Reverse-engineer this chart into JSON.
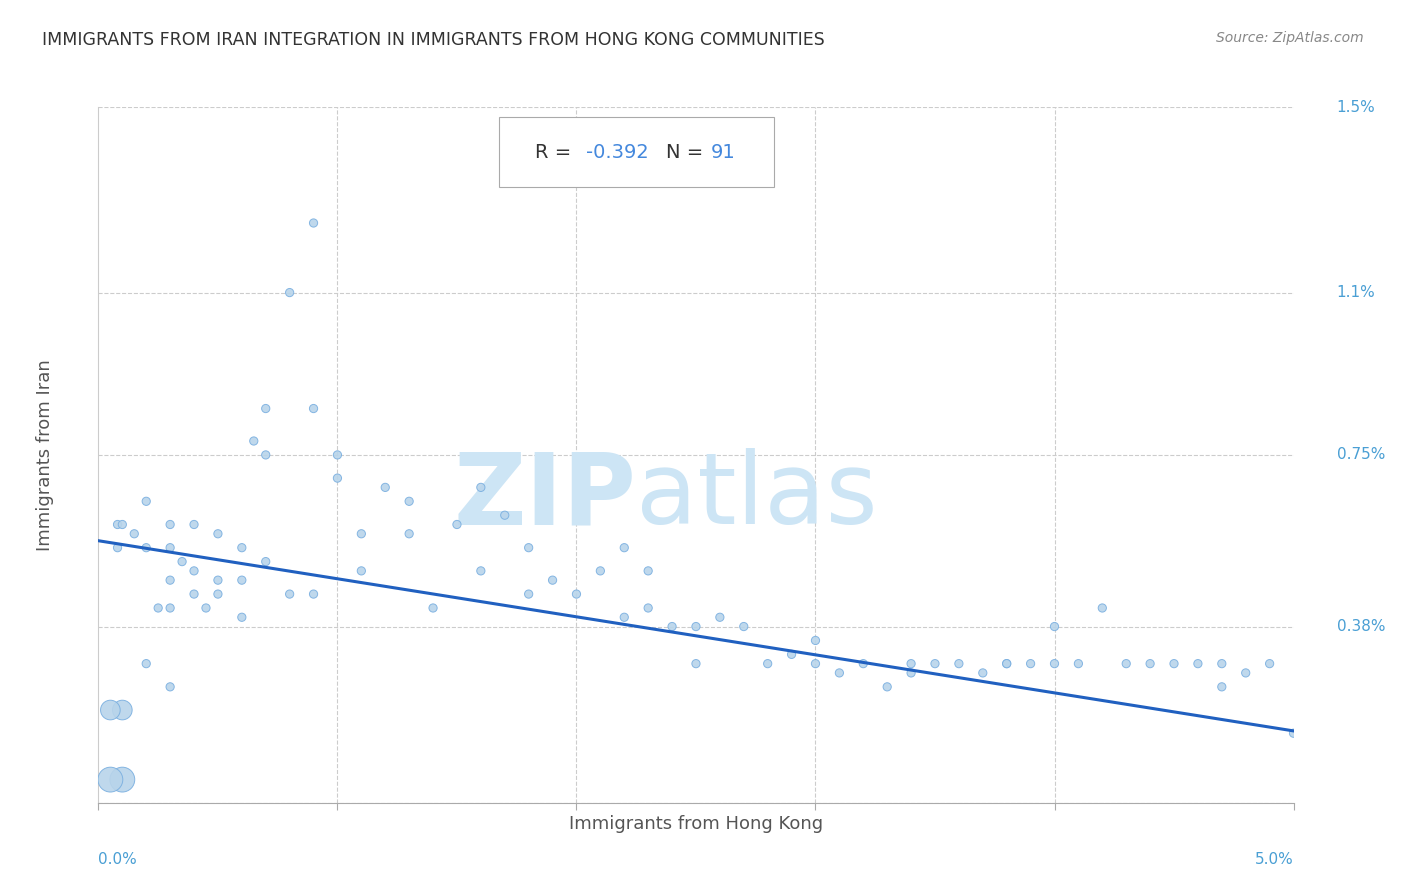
{
  "title": "IMMIGRANTS FROM IRAN INTEGRATION IN IMMIGRANTS FROM HONG KONG COMMUNITIES",
  "source": "Source: ZipAtlas.com",
  "xlabel": "Immigrants from Hong Kong",
  "ylabel": "Immigrants from Iran",
  "xlim": [
    0.0,
    0.05
  ],
  "ylim": [
    0.0,
    0.015
  ],
  "xticks": [
    0.0,
    0.01,
    0.02,
    0.03,
    0.04,
    0.05
  ],
  "ytick_positions": [
    0.0,
    0.0038,
    0.0075,
    0.011,
    0.015
  ],
  "yticklabels": [
    "",
    "0.38%",
    "0.75%",
    "1.1%",
    "1.5%"
  ],
  "R_val": "-0.392",
  "N_val": "91",
  "regression_start_x": 0.0,
  "regression_start_y": 0.00565,
  "regression_end_x": 0.05,
  "regression_end_y": 0.00155,
  "scatter_color": "#b8d4ea",
  "scatter_edgecolor": "#7aafe0",
  "regression_color": "#2060c0",
  "title_color": "#333333",
  "axis_label_color": "#555555",
  "tick_label_color": "#4a9fd4",
  "annotation_text_color": "#333333",
  "annotation_val_color": "#4488dd",
  "watermark_color": "#cde5f5",
  "background_color": "#ffffff",
  "grid_color": "#cccccc",
  "scatter_x": [
    0.0008,
    0.0008,
    0.001,
    0.0015,
    0.002,
    0.002,
    0.0025,
    0.003,
    0.003,
    0.003,
    0.003,
    0.0035,
    0.004,
    0.004,
    0.004,
    0.0045,
    0.005,
    0.005,
    0.005,
    0.006,
    0.006,
    0.006,
    0.0065,
    0.007,
    0.007,
    0.007,
    0.008,
    0.008,
    0.009,
    0.009,
    0.009,
    0.01,
    0.01,
    0.011,
    0.011,
    0.012,
    0.013,
    0.013,
    0.014,
    0.015,
    0.016,
    0.016,
    0.017,
    0.018,
    0.018,
    0.019,
    0.02,
    0.021,
    0.022,
    0.022,
    0.023,
    0.023,
    0.024,
    0.025,
    0.025,
    0.026,
    0.027,
    0.028,
    0.029,
    0.03,
    0.03,
    0.031,
    0.032,
    0.033,
    0.034,
    0.034,
    0.035,
    0.036,
    0.037,
    0.038,
    0.038,
    0.039,
    0.04,
    0.04,
    0.041,
    0.042,
    0.043,
    0.044,
    0.045,
    0.046,
    0.047,
    0.047,
    0.048,
    0.049,
    0.05,
    0.001,
    0.001,
    0.0005,
    0.0005,
    0.003,
    0.002
  ],
  "scatter_y": [
    0.006,
    0.0055,
    0.006,
    0.0058,
    0.0055,
    0.0065,
    0.0042,
    0.0048,
    0.006,
    0.0055,
    0.0042,
    0.0052,
    0.005,
    0.0045,
    0.006,
    0.0042,
    0.0048,
    0.0058,
    0.0045,
    0.0055,
    0.0048,
    0.004,
    0.0078,
    0.0075,
    0.0052,
    0.0085,
    0.0045,
    0.011,
    0.0125,
    0.0085,
    0.0045,
    0.007,
    0.0075,
    0.0058,
    0.005,
    0.0068,
    0.0058,
    0.0065,
    0.0042,
    0.006,
    0.0068,
    0.005,
    0.0062,
    0.0045,
    0.0055,
    0.0048,
    0.0045,
    0.005,
    0.004,
    0.0055,
    0.0042,
    0.005,
    0.0038,
    0.0038,
    0.003,
    0.004,
    0.0038,
    0.003,
    0.0032,
    0.0035,
    0.003,
    0.0028,
    0.003,
    0.0025,
    0.003,
    0.0028,
    0.003,
    0.003,
    0.0028,
    0.003,
    0.003,
    0.003,
    0.0038,
    0.003,
    0.003,
    0.0042,
    0.003,
    0.003,
    0.003,
    0.003,
    0.003,
    0.0025,
    0.0028,
    0.003,
    0.0015,
    0.002,
    0.0005,
    0.002,
    0.0005,
    0.0025,
    0.003
  ],
  "scatter_sizes": [
    35,
    35,
    35,
    35,
    35,
    35,
    35,
    35,
    35,
    35,
    35,
    35,
    35,
    35,
    35,
    35,
    35,
    35,
    35,
    35,
    35,
    35,
    35,
    35,
    35,
    35,
    35,
    35,
    35,
    35,
    35,
    35,
    35,
    35,
    35,
    35,
    35,
    35,
    35,
    35,
    35,
    35,
    35,
    35,
    35,
    35,
    35,
    35,
    35,
    35,
    35,
    35,
    35,
    35,
    35,
    35,
    35,
    35,
    35,
    35,
    35,
    35,
    35,
    35,
    35,
    35,
    35,
    35,
    35,
    35,
    35,
    35,
    35,
    35,
    35,
    35,
    35,
    35,
    35,
    35,
    35,
    35,
    35,
    35,
    35,
    200,
    320,
    200,
    320,
    35,
    35
  ]
}
